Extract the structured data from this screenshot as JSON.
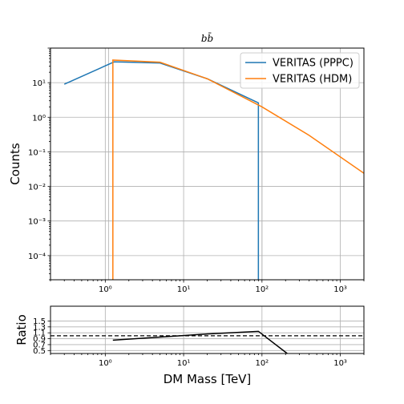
{
  "chart_data": [
    {
      "type": "line",
      "title": "bb̄",
      "xlabel": "",
      "ylabel": "Counts",
      "x_scale": "log",
      "y_scale": "log",
      "xlim": [
        0.2,
        2000
      ],
      "ylim": [
        2e-05,
        100
      ],
      "grid": true,
      "legend_position": "top-right",
      "x_ticks": [
        {
          "value": 1,
          "label": "10^0"
        },
        {
          "value": 10,
          "label": "10^1"
        },
        {
          "value": 100,
          "label": "10^2"
        },
        {
          "value": 1000,
          "label": "10^3"
        }
      ],
      "y_ticks": [
        {
          "value": 0.0001,
          "label": "10^-4"
        },
        {
          "value": 0.001,
          "label": "10^-3"
        },
        {
          "value": 0.01,
          "label": "10^-2"
        },
        {
          "value": 0.1,
          "label": "10^-1"
        },
        {
          "value": 1,
          "label": "10^0"
        },
        {
          "value": 10,
          "label": "10^1"
        }
      ],
      "series": [
        {
          "name": "VERITAS (PPPC)",
          "color": "#1f77b4",
          "points": [
            [
              0.3,
              9
            ],
            [
              1.3,
              40
            ],
            [
              5,
              37
            ],
            [
              20,
              13
            ],
            [
              90,
              2.6
            ],
            [
              90,
              1e-05
            ]
          ]
        },
        {
          "name": "VERITAS (HDM)",
          "color": "#ff7f0e",
          "points": [
            [
              1.25,
              1e-05
            ],
            [
              1.25,
              45
            ],
            [
              5,
              39
            ],
            [
              20,
              13
            ],
            [
              100,
              2
            ],
            [
              400,
              0.3
            ],
            [
              2000,
              0.024
            ]
          ]
        }
      ],
      "vlines": [
        {
          "x": 1.1,
          "color": "#ff7f0e"
        },
        {
          "x": 100,
          "color": "#1f77b4"
        }
      ]
    },
    {
      "type": "line",
      "title": "",
      "xlabel": "DM Mass [TeV]",
      "ylabel": "Ratio",
      "x_scale": "log",
      "y_scale": "linear",
      "xlim": [
        0.2,
        2000
      ],
      "ylim": [
        0.4,
        2.0
      ],
      "grid": true,
      "x_ticks": [
        {
          "value": 1,
          "label": "10^0"
        },
        {
          "value": 10,
          "label": "10^1"
        },
        {
          "value": 100,
          "label": "10^2"
        },
        {
          "value": 1000,
          "label": "10^3"
        }
      ],
      "y_ticks": [
        {
          "value": 0.5,
          "label": "0.5"
        },
        {
          "value": 0.7,
          "label": "0.7"
        },
        {
          "value": 0.9,
          "label": "0.9"
        },
        {
          "value": 1.1,
          "label": "1.1"
        },
        {
          "value": 1.3,
          "label": "1.3"
        },
        {
          "value": 1.5,
          "label": "1.5"
        }
      ],
      "reference_line": {
        "y": 1.0,
        "style": "dashed"
      },
      "series": [
        {
          "name": "",
          "color": "#000000",
          "points": [
            [
              1.25,
              0.85
            ],
            [
              20,
              1.06
            ],
            [
              90,
              1.15
            ],
            [
              210,
              0.4
            ]
          ]
        }
      ]
    }
  ]
}
